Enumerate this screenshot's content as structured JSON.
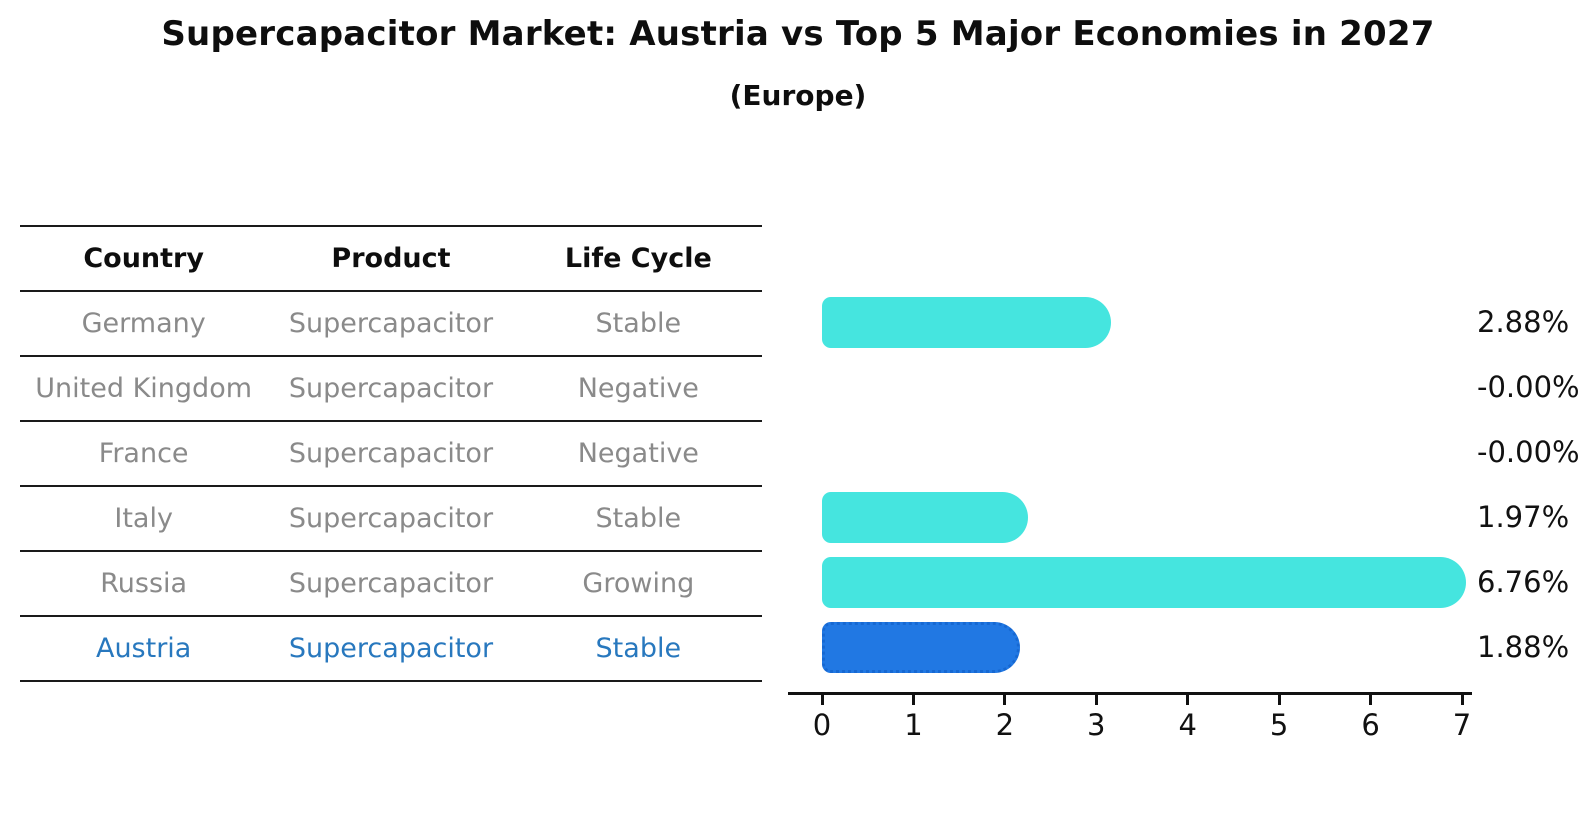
{
  "title": "Supercapacitor Market: Austria vs Top 5 Major Economies in 2027",
  "subtitle": "(Europe)",
  "table": {
    "headers": {
      "country": "Country",
      "product": "Product",
      "life_cycle": "Life Cycle"
    },
    "rows": [
      {
        "country": "Germany",
        "product": "Supercapacitor",
        "life_cycle": "Stable",
        "highlight": false
      },
      {
        "country": "United Kingdom",
        "product": "Supercapacitor",
        "life_cycle": "Negative",
        "highlight": false
      },
      {
        "country": "France",
        "product": "Supercapacitor",
        "life_cycle": "Negative",
        "highlight": false
      },
      {
        "country": "Italy",
        "product": "Supercapacitor",
        "life_cycle": "Stable",
        "highlight": false
      },
      {
        "country": "Russia",
        "product": "Supercapacitor",
        "life_cycle": "Growing",
        "highlight": false
      },
      {
        "country": "Austria",
        "product": "Supercapacitor",
        "life_cycle": "Stable",
        "highlight": true
      }
    ]
  },
  "chart_data": {
    "type": "bar",
    "orientation": "horizontal",
    "title": "Supercapacitor Market: Austria vs Top 5 Major Economies in 2027",
    "subtitle": "(Europe)",
    "categories": [
      "Germany",
      "United Kingdom",
      "France",
      "Italy",
      "Russia",
      "Austria"
    ],
    "values": [
      2.88,
      -0.0,
      -0.0,
      1.97,
      6.76,
      1.88
    ],
    "value_labels": [
      "2.88%",
      "-0.00%",
      "-0.00%",
      "1.97%",
      "6.76%",
      "1.88%"
    ],
    "x_ticks": [
      0,
      1,
      2,
      3,
      4,
      5,
      6,
      7
    ],
    "xlim": [
      0,
      7
    ],
    "grid": false,
    "legend": false,
    "highlight_index": 5,
    "colors": {
      "bar_default": "#45e5df",
      "bar_highlight": "#2178e3",
      "bar_highlight_border": "#1668d2",
      "highlight_text": "#2878be",
      "table_text": "#8a8a8a",
      "axis_text": "#111111"
    }
  }
}
